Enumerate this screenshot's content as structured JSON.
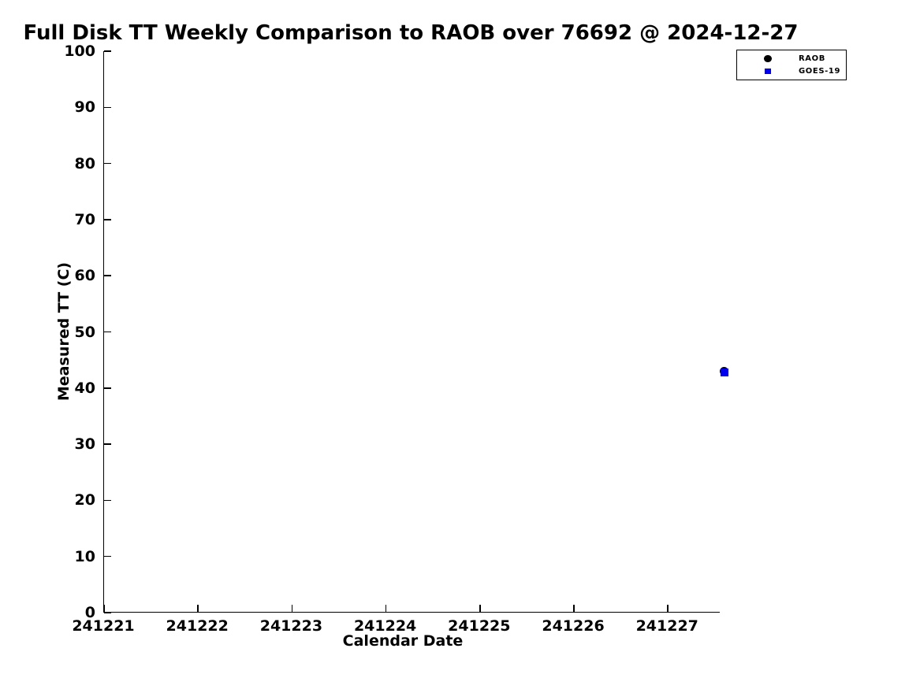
{
  "figure": {
    "background": "#ffffff",
    "text_color": "#000000",
    "axis_color": "#000000"
  },
  "chart_data": {
    "type": "scatter",
    "title": "Full Disk TT Weekly Comparison to RAOB over 76692 @ 2024-12-27",
    "xlabel": "Calendar Date",
    "ylabel": "Measured TT (C)",
    "xlim": [
      241221,
      241227.56
    ],
    "ylim": [
      0,
      100
    ],
    "xticks": [
      241221,
      241222,
      241223,
      241224,
      241225,
      241226,
      241227
    ],
    "yticks": [
      0,
      10,
      20,
      30,
      40,
      50,
      60,
      70,
      80,
      90,
      100
    ],
    "grid": false,
    "spines": [
      "left",
      "bottom"
    ],
    "tick_direction": "in",
    "legend_position": "top-right, outside plot area",
    "series": [
      {
        "name": "RAOB",
        "marker": "circle",
        "color": "#000000",
        "size": 11,
        "legend_marker_size": 9.5,
        "points": [
          {
            "x": 241227.6,
            "y": 43.0
          }
        ]
      },
      {
        "name": "GOES-19",
        "marker": "square",
        "color": "#0000ee",
        "size": 9.5,
        "legend_marker_size": 7.5,
        "points": [
          {
            "x": 241227.6,
            "y": 42.8
          }
        ]
      }
    ]
  }
}
